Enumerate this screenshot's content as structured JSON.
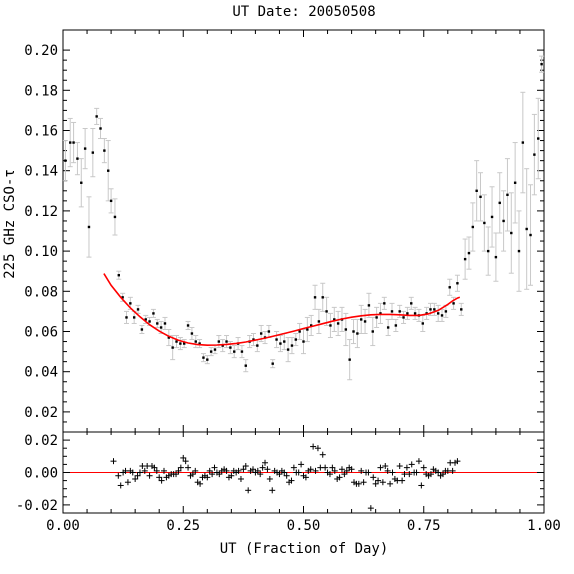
{
  "chart_data": {
    "type": "scatter",
    "title": "UT Date: 20050508",
    "xlabel": "UT (Fraction of Day)",
    "ylabel": "225 GHz CSO-τ",
    "xlim": [
      0,
      1
    ],
    "x_ticks": [
      "0.00",
      "0.25",
      "0.50",
      "0.75",
      "1.00"
    ],
    "main": {
      "ylim": [
        0.01,
        0.21
      ],
      "y_ticks": [
        "0.02",
        "0.04",
        "0.06",
        "0.08",
        "0.10",
        "0.12",
        "0.14",
        "0.16",
        "0.18",
        "0.20"
      ],
      "series": [
        {
          "marker": "dot",
          "errorbars": true,
          "x": [
            0.005,
            0.015,
            0.022,
            0.03,
            0.038,
            0.046,
            0.054,
            0.062,
            0.07,
            0.078,
            0.086,
            0.094,
            0.1,
            0.108,
            0.116,
            0.124,
            0.132,
            0.14,
            0.148,
            0.156,
            0.164,
            0.172,
            0.18,
            0.188,
            0.196,
            0.204,
            0.212,
            0.22,
            0.228,
            0.236,
            0.244,
            0.252,
            0.26,
            0.268,
            0.276,
            0.284,
            0.292,
            0.3,
            0.308,
            0.316,
            0.324,
            0.332,
            0.34,
            0.348,
            0.356,
            0.364,
            0.372,
            0.38,
            0.388,
            0.396,
            0.404,
            0.412,
            0.42,
            0.428,
            0.436,
            0.444,
            0.452,
            0.46,
            0.468,
            0.476,
            0.484,
            0.492,
            0.5,
            0.508,
            0.516,
            0.524,
            0.532,
            0.54,
            0.548,
            0.556,
            0.564,
            0.572,
            0.58,
            0.588,
            0.596,
            0.604,
            0.612,
            0.62,
            0.628,
            0.636,
            0.644,
            0.652,
            0.66,
            0.668,
            0.676,
            0.684,
            0.692,
            0.7,
            0.708,
            0.716,
            0.724,
            0.732,
            0.74,
            0.748,
            0.756,
            0.764,
            0.772,
            0.78,
            0.788,
            0.796,
            0.804,
            0.812,
            0.82,
            0.828,
            0.836,
            0.844,
            0.852,
            0.86,
            0.868,
            0.876,
            0.884,
            0.892,
            0.9,
            0.908,
            0.916,
            0.924,
            0.932,
            0.94,
            0.948,
            0.956,
            0.964,
            0.972,
            0.98,
            0.988,
            0.995
          ],
          "y": [
            0.145,
            0.154,
            0.154,
            0.146,
            0.134,
            0.151,
            0.112,
            0.149,
            0.167,
            0.161,
            0.15,
            0.14,
            0.125,
            0.117,
            0.088,
            0.077,
            0.067,
            0.074,
            0.067,
            0.071,
            0.061,
            0.066,
            0.065,
            0.069,
            0.064,
            0.062,
            0.064,
            0.057,
            0.052,
            0.055,
            0.054,
            0.054,
            0.063,
            0.059,
            0.055,
            0.054,
            0.047,
            0.046,
            0.05,
            0.051,
            0.055,
            0.053,
            0.055,
            0.052,
            0.05,
            0.054,
            0.05,
            0.043,
            0.055,
            0.056,
            0.053,
            0.059,
            0.057,
            0.06,
            0.044,
            0.056,
            0.054,
            0.055,
            0.051,
            0.053,
            0.056,
            0.06,
            0.055,
            0.061,
            0.063,
            0.077,
            0.065,
            0.077,
            0.07,
            0.063,
            0.066,
            0.064,
            0.066,
            0.061,
            0.046,
            0.06,
            0.059,
            0.066,
            0.065,
            0.073,
            0.06,
            0.067,
            0.069,
            0.074,
            0.062,
            0.07,
            0.063,
            0.07,
            0.067,
            0.069,
            0.074,
            0.069,
            0.068,
            0.064,
            0.069,
            0.071,
            0.071,
            0.069,
            0.068,
            0.07,
            0.082,
            0.074,
            0.084,
            0.071,
            0.096,
            0.099,
            0.112,
            0.13,
            0.127,
            0.114,
            0.1,
            0.117,
            0.097,
            0.124,
            0.115,
            0.128,
            0.109,
            0.134,
            0.1,
            0.154,
            0.111,
            0.108,
            0.148,
            0.156,
            0.193
          ],
          "err": [
            0.01,
            0.012,
            0.01,
            0.008,
            0.012,
            0.01,
            0.015,
            0.012,
            0.004,
            0.005,
            0.006,
            0.015,
            0.006,
            0.009,
            0.002,
            0.002,
            0.003,
            0.003,
            0.003,
            0.002,
            0.002,
            0.002,
            0.002,
            0.002,
            0.002,
            0.003,
            0.003,
            0.004,
            0.006,
            0.003,
            0.003,
            0.002,
            0.002,
            0.003,
            0.003,
            0.002,
            0.002,
            0.002,
            0.002,
            0.002,
            0.003,
            0.003,
            0.003,
            0.003,
            0.003,
            0.003,
            0.003,
            0.003,
            0.003,
            0.003,
            0.003,
            0.004,
            0.003,
            0.003,
            0.002,
            0.004,
            0.004,
            0.004,
            0.006,
            0.004,
            0.003,
            0.004,
            0.006,
            0.006,
            0.005,
            0.006,
            0.006,
            0.007,
            0.007,
            0.006,
            0.006,
            0.006,
            0.006,
            0.008,
            0.01,
            0.006,
            0.007,
            0.007,
            0.006,
            0.006,
            0.007,
            0.005,
            0.005,
            0.003,
            0.004,
            0.004,
            0.003,
            0.003,
            0.003,
            0.003,
            0.003,
            0.003,
            0.003,
            0.004,
            0.003,
            0.003,
            0.003,
            0.004,
            0.003,
            0.003,
            0.004,
            0.003,
            0.004,
            0.003,
            0.01,
            0.008,
            0.012,
            0.015,
            0.012,
            0.014,
            0.012,
            0.015,
            0.012,
            0.015,
            0.015,
            0.018,
            0.02,
            0.02,
            0.02,
            0.025,
            0.03,
            0.025,
            0.02,
            0.02,
            0.004
          ]
        },
        {
          "marker": "line",
          "color": "#ff0000",
          "x": [
            0.085,
            0.1,
            0.12,
            0.14,
            0.16,
            0.18,
            0.2,
            0.22,
            0.24,
            0.26,
            0.28,
            0.3,
            0.32,
            0.34,
            0.36,
            0.38,
            0.4,
            0.42,
            0.44,
            0.46,
            0.48,
            0.5,
            0.52,
            0.54,
            0.56,
            0.58,
            0.6,
            0.62,
            0.64,
            0.66,
            0.68,
            0.7,
            0.72,
            0.74,
            0.76,
            0.78,
            0.8,
            0.81,
            0.82,
            0.825
          ],
          "y": [
            0.0888,
            0.083,
            0.077,
            0.0718,
            0.0673,
            0.0634,
            0.0602,
            0.0576,
            0.0556,
            0.0543,
            0.0535,
            0.0532,
            0.0533,
            0.0536,
            0.0541,
            0.0548,
            0.0557,
            0.0567,
            0.0578,
            0.059,
            0.0602,
            0.0615,
            0.0627,
            0.0639,
            0.0651,
            0.0662,
            0.0671,
            0.0678,
            0.0683,
            0.0685,
            0.0685,
            0.0683,
            0.068,
            0.068,
            0.0688,
            0.0705,
            0.0735,
            0.0752,
            0.0766,
            0.077
          ]
        }
      ]
    },
    "residual": {
      "ylim": [
        -0.025,
        0.025
      ],
      "y_ticks": [
        "-0.02",
        "0.00",
        "0.02"
      ],
      "zero_line_color": "#ff0000",
      "series": [
        {
          "marker": "plus",
          "x": [
            0.105,
            0.115,
            0.12,
            0.125,
            0.13,
            0.135,
            0.14,
            0.145,
            0.15,
            0.155,
            0.16,
            0.165,
            0.17,
            0.175,
            0.18,
            0.185,
            0.19,
            0.195,
            0.2,
            0.205,
            0.21,
            0.215,
            0.22,
            0.225,
            0.23,
            0.235,
            0.24,
            0.245,
            0.25,
            0.255,
            0.26,
            0.265,
            0.27,
            0.275,
            0.28,
            0.285,
            0.29,
            0.295,
            0.3,
            0.305,
            0.31,
            0.315,
            0.32,
            0.325,
            0.33,
            0.335,
            0.34,
            0.345,
            0.35,
            0.355,
            0.36,
            0.365,
            0.37,
            0.375,
            0.38,
            0.385,
            0.39,
            0.395,
            0.4,
            0.405,
            0.41,
            0.415,
            0.42,
            0.425,
            0.43,
            0.435,
            0.44,
            0.445,
            0.45,
            0.455,
            0.46,
            0.465,
            0.47,
            0.475,
            0.48,
            0.485,
            0.49,
            0.495,
            0.5,
            0.505,
            0.51,
            0.515,
            0.52,
            0.525,
            0.53,
            0.535,
            0.54,
            0.545,
            0.55,
            0.555,
            0.56,
            0.565,
            0.57,
            0.575,
            0.58,
            0.585,
            0.59,
            0.595,
            0.6,
            0.605,
            0.61,
            0.615,
            0.62,
            0.625,
            0.63,
            0.635,
            0.64,
            0.645,
            0.65,
            0.655,
            0.66,
            0.665,
            0.67,
            0.675,
            0.68,
            0.685,
            0.69,
            0.695,
            0.7,
            0.705,
            0.71,
            0.715,
            0.72,
            0.725,
            0.73,
            0.735,
            0.74,
            0.745,
            0.75,
            0.755,
            0.76,
            0.765,
            0.77,
            0.775,
            0.78,
            0.785,
            0.79,
            0.795,
            0.8,
            0.805,
            0.81,
            0.815,
            0.82
          ],
          "y": [
            0.007,
            -0.002,
            -0.008,
            0.0,
            0.001,
            -0.006,
            0.001,
            0.0,
            -0.004,
            -0.002,
            0.0,
            0.004,
            0.001,
            0.004,
            -0.002,
            0.004,
            0.003,
            0.001,
            -0.003,
            -0.005,
            0.001,
            -0.003,
            -0.002,
            -0.001,
            -0.001,
            -0.001,
            0.001,
            0.003,
            0.009,
            0.007,
            0.003,
            -0.002,
            -0.001,
            0.001,
            -0.006,
            -0.007,
            -0.003,
            -0.002,
            -0.003,
            0.001,
            -0.001,
            0.003,
            0.0,
            -0.001,
            0.001,
            0.002,
            0.001,
            -0.003,
            -0.002,
            0.001,
            0.0,
            0.001,
            -0.004,
            0.002,
            0.004,
            -0.011,
            0.001,
            0.002,
            0.0,
            0.001,
            -0.001,
            0.003,
            0.006,
            0.002,
            -0.004,
            -0.011,
            0.001,
            0.0,
            -0.001,
            0.001,
            0.0,
            -0.002,
            -0.006,
            -0.005,
            0.003,
            0.0,
            0.0,
            0.005,
            -0.002,
            -0.003,
            0.001,
            0.002,
            0.016,
            0.001,
            0.015,
            0.003,
            0.011,
            0.003,
            0.0,
            -0.001,
            0.003,
            0.001,
            -0.004,
            -0.003,
            0.002,
            -0.001,
            0.001,
            0.003,
            0.002,
            -0.006,
            -0.007,
            -0.007,
            0.001,
            -0.006,
            0.0,
            0.0,
            -0.022,
            -0.003,
            -0.007,
            -0.005,
            0.003,
            -0.006,
            0.004,
            0.001,
            -0.007,
            0.0,
            -0.004,
            -0.005,
            0.004,
            -0.005,
            -0.001,
            0.003,
            -0.001,
            0.005,
            0.0,
            0.0,
            0.007,
            -0.008,
            0.003,
            -0.001,
            -0.002,
            -0.001,
            0.002,
            0.001,
            0.0,
            -0.002,
            -0.001,
            0.001,
            0.001,
            0.006,
            0.001,
            0.006,
            0.007
          ]
        }
      ]
    }
  }
}
